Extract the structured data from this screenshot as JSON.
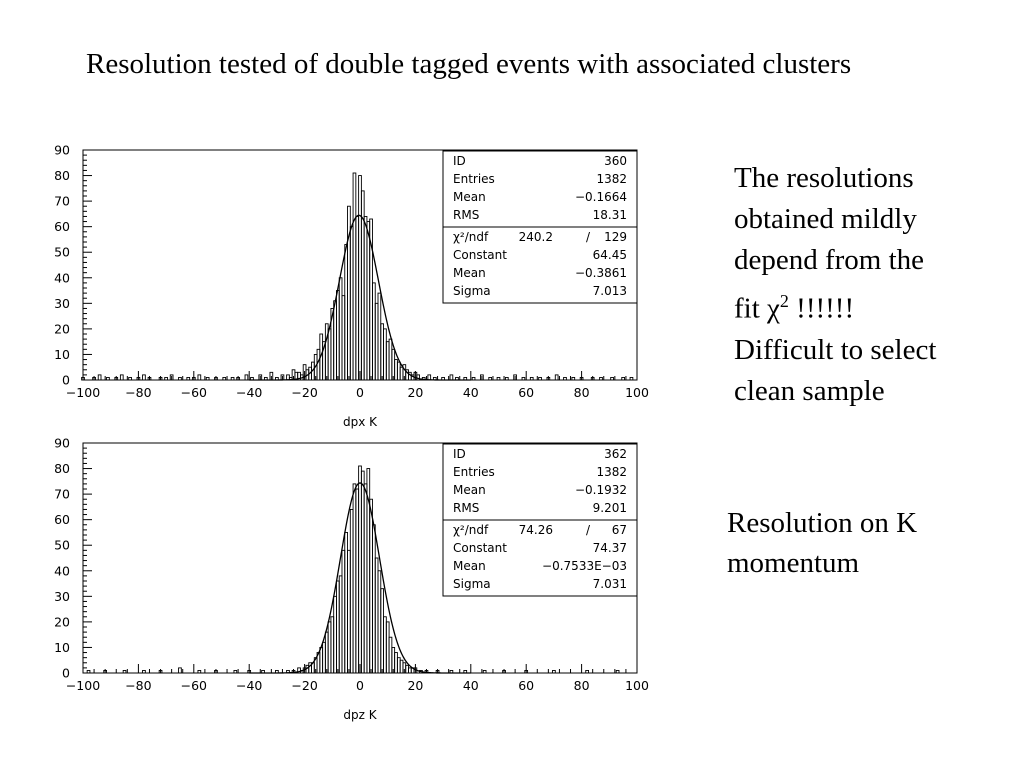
{
  "slide": {
    "title": "Resolution tested of double tagged events with associated clusters",
    "note1_lines": [
      "The resolutions",
      "obtained mildly",
      "depend from the"
    ],
    "note1_chi_prefix": "fit ",
    "note1_chi_symbol": "χ",
    "note1_chi_sup": "2",
    "note1_chi_suffix": " !!!!!!",
    "note1_lines_after": [
      "Difficult to select",
      "clean sample"
    ],
    "note2_lines": [
      "Resolution on K",
      "momentum"
    ]
  },
  "chart_data": [
    {
      "type": "histogram",
      "xlabel": "dpx K",
      "ylabel": "",
      "xlim": [
        -100,
        100
      ],
      "ylim": [
        0,
        90
      ],
      "x_ticks": [
        "-100",
        "-80",
        "-60",
        "-40",
        "-20",
        "0",
        "20",
        "40",
        "60",
        "80",
        "100"
      ],
      "y_ticks": [
        "0",
        "10",
        "20",
        "30",
        "40",
        "50",
        "60",
        "70",
        "80",
        "90"
      ],
      "stats": [
        [
          "ID",
          "360"
        ],
        [
          "Entries",
          "1382"
        ],
        [
          "Mean",
          "-0.1664"
        ],
        [
          "RMS",
          "18.31"
        ]
      ],
      "fit_stats": [
        [
          "χ²/ndf",
          "240.2",
          "/",
          "129"
        ],
        [
          "Constant",
          "64.45"
        ],
        [
          "Mean",
          "-0.3861"
        ],
        [
          "Sigma",
          "7.013"
        ]
      ],
      "fit": {
        "constant": 64.45,
        "mean": -0.3861,
        "sigma": 7.013
      },
      "bin_width": 1,
      "bins": [
        [
          -100,
          1
        ],
        [
          -96,
          1
        ],
        [
          -94,
          2
        ],
        [
          -91,
          1
        ],
        [
          -88,
          1
        ],
        [
          -86,
          2
        ],
        [
          -83,
          1
        ],
        [
          -80,
          1
        ],
        [
          -78,
          2
        ],
        [
          -76,
          1
        ],
        [
          -72,
          1
        ],
        [
          -70,
          1
        ],
        [
          -68,
          2
        ],
        [
          -65,
          1
        ],
        [
          -62,
          1
        ],
        [
          -60,
          1
        ],
        [
          -58,
          2
        ],
        [
          -55,
          1
        ],
        [
          -52,
          1
        ],
        [
          -49,
          1
        ],
        [
          -46,
          1
        ],
        [
          -44,
          1
        ],
        [
          -41,
          2
        ],
        [
          -39,
          1
        ],
        [
          -36,
          2
        ],
        [
          -34,
          1
        ],
        [
          -32,
          3
        ],
        [
          -30,
          1
        ],
        [
          -28,
          2
        ],
        [
          -26,
          2
        ],
        [
          -25,
          1
        ],
        [
          -24,
          4
        ],
        [
          -23,
          3
        ],
        [
          -22,
          3
        ],
        [
          -21,
          2
        ],
        [
          -20,
          6
        ],
        [
          -19,
          4
        ],
        [
          -18,
          5
        ],
        [
          -17,
          7
        ],
        [
          -16,
          10
        ],
        [
          -15,
          12
        ],
        [
          -14,
          18
        ],
        [
          -13,
          15
        ],
        [
          -12,
          22
        ],
        [
          -11,
          20
        ],
        [
          -10,
          28
        ],
        [
          -9,
          31
        ],
        [
          -8,
          35
        ],
        [
          -7,
          40
        ],
        [
          -6,
          33
        ],
        [
          -5,
          53
        ],
        [
          -4,
          68
        ],
        [
          -3,
          60
        ],
        [
          -2,
          81
        ],
        [
          -1,
          64
        ],
        [
          0,
          80
        ],
        [
          1,
          74
        ],
        [
          2,
          64
        ],
        [
          3,
          62
        ],
        [
          4,
          63
        ],
        [
          5,
          38
        ],
        [
          6,
          30
        ],
        [
          7,
          34
        ],
        [
          8,
          22
        ],
        [
          9,
          20
        ],
        [
          10,
          15
        ],
        [
          11,
          16
        ],
        [
          12,
          12
        ],
        [
          13,
          8
        ],
        [
          14,
          7
        ],
        [
          15,
          5
        ],
        [
          16,
          6
        ],
        [
          17,
          4
        ],
        [
          18,
          3
        ],
        [
          19,
          2
        ],
        [
          20,
          3
        ],
        [
          21,
          2
        ],
        [
          23,
          1
        ],
        [
          25,
          2
        ],
        [
          27,
          1
        ],
        [
          30,
          1
        ],
        [
          33,
          2
        ],
        [
          35,
          1
        ],
        [
          38,
          1
        ],
        [
          41,
          1
        ],
        [
          44,
          2
        ],
        [
          47,
          1
        ],
        [
          50,
          1
        ],
        [
          53,
          1
        ],
        [
          56,
          2
        ],
        [
          59,
          1
        ],
        [
          62,
          1
        ],
        [
          65,
          1
        ],
        [
          68,
          1
        ],
        [
          71,
          2
        ],
        [
          74,
          1
        ],
        [
          77,
          1
        ],
        [
          80,
          1
        ],
        [
          84,
          1
        ],
        [
          87,
          1
        ],
        [
          91,
          1
        ],
        [
          95,
          1
        ],
        [
          98,
          1
        ]
      ]
    },
    {
      "type": "histogram",
      "xlabel": "dpz K",
      "ylabel": "",
      "xlim": [
        -100,
        100
      ],
      "ylim": [
        0,
        90
      ],
      "x_ticks": [
        "-100",
        "-80",
        "-60",
        "-40",
        "-20",
        "0",
        "20",
        "40",
        "60",
        "80",
        "100"
      ],
      "y_ticks": [
        "0",
        "10",
        "20",
        "30",
        "40",
        "50",
        "60",
        "70",
        "80",
        "90"
      ],
      "stats": [
        [
          "ID",
          "362"
        ],
        [
          "Entries",
          "1382"
        ],
        [
          "Mean",
          "-0.1932"
        ],
        [
          "RMS",
          "9.201"
        ]
      ],
      "fit_stats": [
        [
          "χ²/ndf",
          "74.26",
          "/",
          "67"
        ],
        [
          "Constant",
          "74.37"
        ],
        [
          "Mean",
          "-0.7533E-03"
        ],
        [
          "Sigma",
          "7.031"
        ]
      ],
      "fit": {
        "constant": 74.37,
        "mean": -0.0007533,
        "sigma": 7.031
      },
      "bin_width": 1,
      "bins": [
        [
          -98,
          1
        ],
        [
          -92,
          1
        ],
        [
          -85,
          1
        ],
        [
          -78,
          1
        ],
        [
          -72,
          1
        ],
        [
          -65,
          2
        ],
        [
          -58,
          1
        ],
        [
          -52,
          1
        ],
        [
          -45,
          1
        ],
        [
          -40,
          1
        ],
        [
          -35,
          1
        ],
        [
          -30,
          1
        ],
        [
          -26,
          1
        ],
        [
          -24,
          1
        ],
        [
          -22,
          2
        ],
        [
          -21,
          1
        ],
        [
          -20,
          2
        ],
        [
          -19,
          3
        ],
        [
          -18,
          4
        ],
        [
          -17,
          4
        ],
        [
          -16,
          6
        ],
        [
          -15,
          8
        ],
        [
          -14,
          10
        ],
        [
          -13,
          12
        ],
        [
          -12,
          16
        ],
        [
          -11,
          20
        ],
        [
          -10,
          22
        ],
        [
          -9,
          30
        ],
        [
          -8,
          36
        ],
        [
          -7,
          38
        ],
        [
          -6,
          48
        ],
        [
          -5,
          55
        ],
        [
          -4,
          48
        ],
        [
          -3,
          64
        ],
        [
          -2,
          74
        ],
        [
          -1,
          72
        ],
        [
          0,
          81
        ],
        [
          1,
          79
        ],
        [
          2,
          74
        ],
        [
          3,
          80
        ],
        [
          4,
          68
        ],
        [
          5,
          58
        ],
        [
          6,
          45
        ],
        [
          7,
          40
        ],
        [
          8,
          33
        ],
        [
          9,
          22
        ],
        [
          10,
          20
        ],
        [
          11,
          14
        ],
        [
          12,
          10
        ],
        [
          13,
          8
        ],
        [
          14,
          6
        ],
        [
          15,
          5
        ],
        [
          16,
          4
        ],
        [
          17,
          3
        ],
        [
          18,
          2
        ],
        [
          19,
          2
        ],
        [
          20,
          2
        ],
        [
          22,
          1
        ],
        [
          24,
          1
        ],
        [
          28,
          1
        ],
        [
          33,
          1
        ],
        [
          38,
          1
        ],
        [
          45,
          1
        ],
        [
          52,
          1
        ],
        [
          60,
          1
        ],
        [
          70,
          1
        ],
        [
          82,
          1
        ],
        [
          93,
          1
        ]
      ]
    }
  ]
}
